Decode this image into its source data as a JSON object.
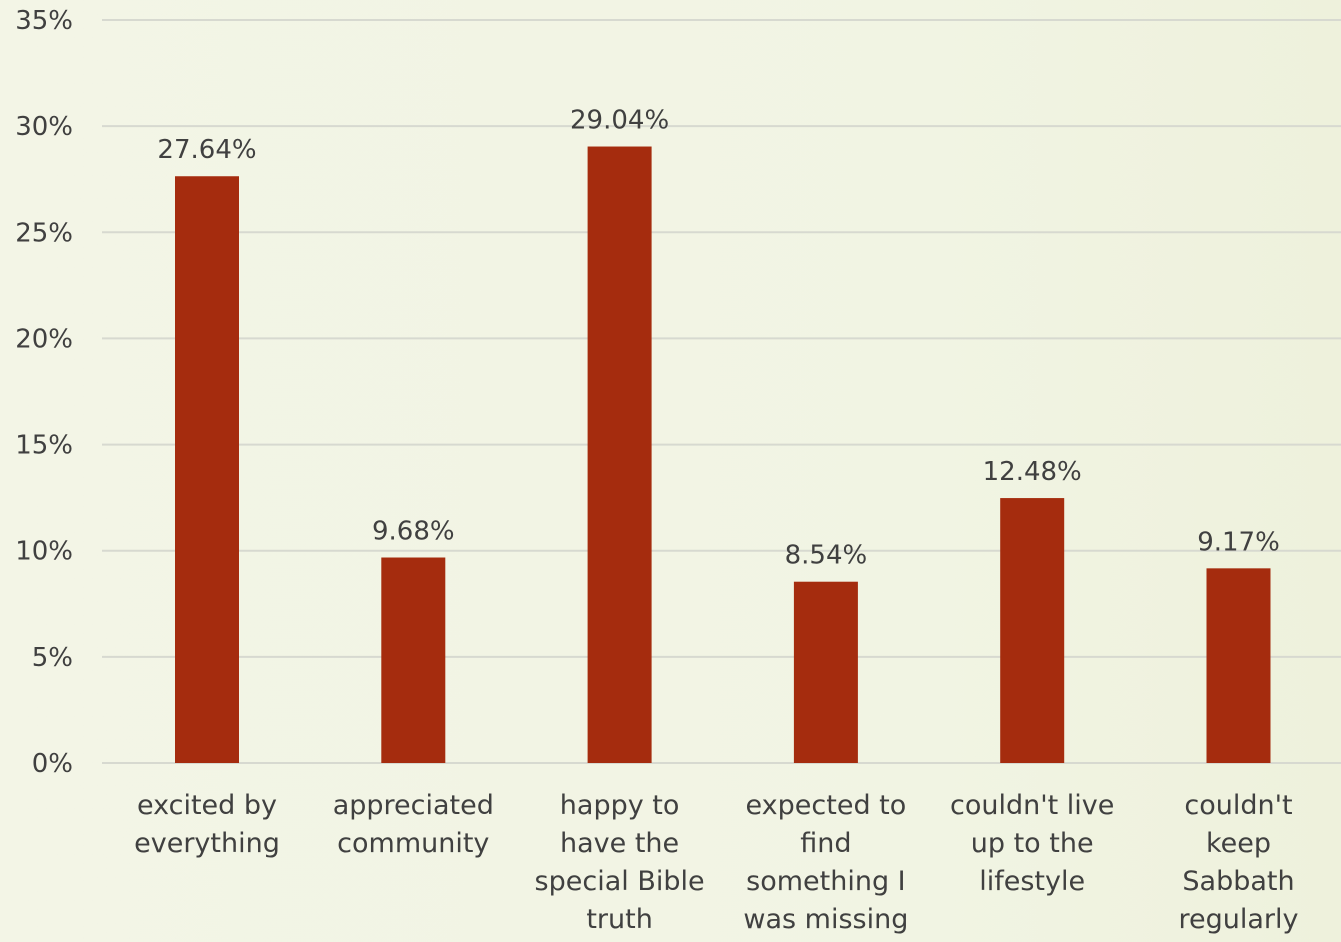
{
  "chart_data": {
    "type": "bar",
    "title": "",
    "xlabel": "",
    "ylabel": "",
    "categories": [
      [
        "excited by",
        "everything"
      ],
      [
        "appreciated",
        "community"
      ],
      [
        "happy to",
        "have the",
        "special Bible",
        "truth"
      ],
      [
        "expected to",
        "find",
        "something I",
        "was missing"
      ],
      [
        "couldn't live",
        "up to the",
        "lifestyle"
      ],
      [
        "couldn't",
        "keep",
        "Sabbath",
        "regularly"
      ]
    ],
    "values": [
      27.64,
      9.68,
      29.04,
      8.54,
      12.48,
      9.17
    ],
    "data_labels": [
      "27.64%",
      "9.68%",
      "29.04%",
      "8.54%",
      "12.48%",
      "9.17%"
    ],
    "ylim": [
      0,
      35
    ],
    "yticks": [
      0,
      5,
      10,
      15,
      20,
      25,
      30,
      35
    ],
    "ytick_labels": [
      "0%",
      "5%",
      "10%",
      "15%",
      "20%",
      "25%",
      "30%",
      "35%"
    ],
    "grid": true,
    "legend": "none",
    "colors": {
      "bar": "#a52c0e",
      "grid": "#d7d9d0",
      "text": "#404040"
    }
  }
}
